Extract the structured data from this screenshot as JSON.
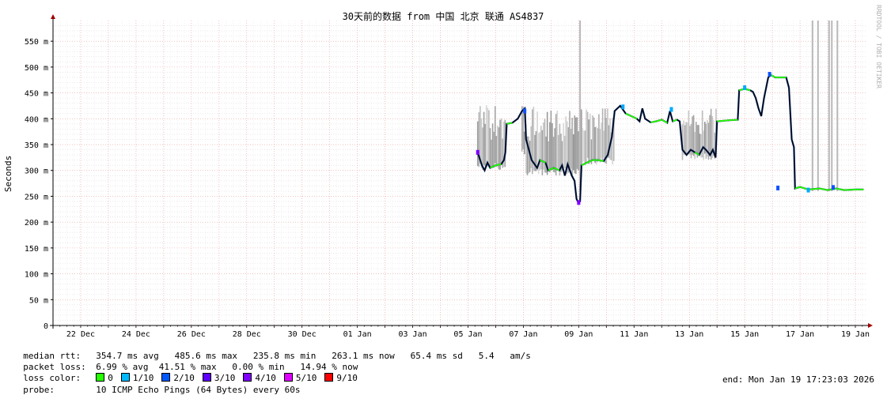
{
  "watermark": "RRDTOOL / TOBI OETIKER",
  "chart_data": {
    "type": "line",
    "title": "30天前的数据 from  中国 北京 联通 AS4837",
    "ylabel": "Seconds",
    "ylim": [
      0,
      590
    ],
    "yticks": [
      {
        "v": 0,
        "label": "0"
      },
      {
        "v": 50,
        "label": "50 m"
      },
      {
        "v": 100,
        "label": "100 m"
      },
      {
        "v": 150,
        "label": "150 m"
      },
      {
        "v": 200,
        "label": "200 m"
      },
      {
        "v": 250,
        "label": "250 m"
      },
      {
        "v": 300,
        "label": "300 m"
      },
      {
        "v": 350,
        "label": "350 m"
      },
      {
        "v": 400,
        "label": "400 m"
      },
      {
        "v": 450,
        "label": "450 m"
      },
      {
        "v": 500,
        "label": "500 m"
      },
      {
        "v": 550,
        "label": "550 m"
      }
    ],
    "xlim": [
      0,
      29.4
    ],
    "xticks": [
      {
        "v": 1,
        "label": "22 Dec"
      },
      {
        "v": 3,
        "label": "24 Dec"
      },
      {
        "v": 5,
        "label": "26 Dec"
      },
      {
        "v": 7,
        "label": "28 Dec"
      },
      {
        "v": 9,
        "label": "30 Dec"
      },
      {
        "v": 11,
        "label": "01 Jan"
      },
      {
        "v": 13,
        "label": "03 Jan"
      },
      {
        "v": 15,
        "label": "05 Jan"
      },
      {
        "v": 17,
        "label": "07 Jan"
      },
      {
        "v": 19,
        "label": "09 Jan"
      },
      {
        "v": 21,
        "label": "11 Jan"
      },
      {
        "v": 23,
        "label": "13 Jan"
      },
      {
        "v": 25,
        "label": "15 Jan"
      },
      {
        "v": 27,
        "label": "17 Jan"
      },
      {
        "v": 29,
        "label": "19 Jan"
      }
    ],
    "median_series": [
      [
        15.35,
        335
      ],
      [
        15.5,
        310
      ],
      [
        15.6,
        300
      ],
      [
        15.7,
        315
      ],
      [
        15.8,
        305
      ],
      [
        16.0,
        310
      ],
      [
        16.2,
        312
      ],
      [
        16.3,
        320
      ],
      [
        16.35,
        335
      ],
      [
        16.4,
        390
      ],
      [
        16.6,
        392
      ],
      [
        16.8,
        400
      ],
      [
        16.95,
        415
      ],
      [
        17.05,
        420
      ],
      [
        17.1,
        360
      ],
      [
        17.3,
        320
      ],
      [
        17.5,
        305
      ],
      [
        17.6,
        320
      ],
      [
        17.8,
        315
      ],
      [
        17.9,
        300
      ],
      [
        18.1,
        305
      ],
      [
        18.3,
        300
      ],
      [
        18.4,
        310
      ],
      [
        18.5,
        290
      ],
      [
        18.6,
        312
      ],
      [
        18.75,
        290
      ],
      [
        18.85,
        280
      ],
      [
        18.92,
        245
      ],
      [
        18.98,
        238
      ],
      [
        19.05,
        240
      ],
      [
        19.1,
        310
      ],
      [
        19.3,
        315
      ],
      [
        19.5,
        320
      ],
      [
        19.7,
        320
      ],
      [
        19.9,
        318
      ],
      [
        20.05,
        330
      ],
      [
        20.2,
        365
      ],
      [
        20.3,
        415
      ],
      [
        20.5,
        425
      ],
      [
        20.7,
        410
      ],
      [
        20.9,
        405
      ],
      [
        21.1,
        400
      ],
      [
        21.2,
        395
      ],
      [
        21.3,
        420
      ],
      [
        21.4,
        400
      ],
      [
        21.6,
        393
      ],
      [
        21.8,
        395
      ],
      [
        22.0,
        398
      ],
      [
        22.2,
        392
      ],
      [
        22.3,
        415
      ],
      [
        22.4,
        395
      ],
      [
        22.55,
        398
      ],
      [
        22.65,
        395
      ],
      [
        22.75,
        340
      ],
      [
        22.9,
        330
      ],
      [
        23.05,
        340
      ],
      [
        23.2,
        335
      ],
      [
        23.35,
        330
      ],
      [
        23.5,
        345
      ],
      [
        23.6,
        340
      ],
      [
        23.75,
        330
      ],
      [
        23.85,
        340
      ],
      [
        23.95,
        325
      ],
      [
        24.0,
        395
      ],
      [
        24.4,
        397
      ],
      [
        24.75,
        398
      ],
      [
        24.8,
        455
      ],
      [
        25.0,
        458
      ],
      [
        25.2,
        455
      ],
      [
        25.3,
        452
      ],
      [
        25.4,
        440
      ],
      [
        25.5,
        420
      ],
      [
        25.6,
        405
      ],
      [
        25.7,
        440
      ],
      [
        25.85,
        480
      ],
      [
        25.95,
        485
      ],
      [
        26.1,
        480
      ],
      [
        26.5,
        480
      ],
      [
        26.6,
        460
      ],
      [
        26.7,
        360
      ],
      [
        26.78,
        345
      ],
      [
        26.82,
        265
      ],
      [
        27.0,
        268
      ],
      [
        27.3,
        263
      ],
      [
        27.7,
        265
      ],
      [
        28.0,
        262
      ],
      [
        28.3,
        265
      ],
      [
        28.6,
        262
      ],
      [
        29.0,
        263
      ],
      [
        29.3,
        263
      ]
    ],
    "smoke_spans": [
      [
        15.35,
        16.35,
        300,
        430
      ],
      [
        16.95,
        17.1,
        330,
        425
      ],
      [
        17.1,
        19.1,
        290,
        430
      ],
      [
        19.1,
        20.3,
        310,
        420
      ],
      [
        22.75,
        24.0,
        320,
        420
      ]
    ],
    "loss_spikes": [
      19.05,
      27.45,
      27.65,
      28.05,
      28.15,
      28.35
    ],
    "loss_marks": [
      {
        "x": 15.35,
        "y": 335,
        "color": "#7e00ff"
      },
      {
        "x": 19.0,
        "y": 238,
        "color": "#7e00ff"
      },
      {
        "x": 17.05,
        "y": 415,
        "color": "#0f52ff"
      },
      {
        "x": 22.35,
        "y": 418,
        "color": "#00aaff"
      },
      {
        "x": 25.0,
        "y": 460,
        "color": "#00aaff"
      },
      {
        "x": 25.9,
        "y": 486,
        "color": "#0f52ff"
      },
      {
        "x": 26.2,
        "y": 266,
        "color": "#0f52ff"
      },
      {
        "x": 27.3,
        "y": 262,
        "color": "#00aaff"
      },
      {
        "x": 28.2,
        "y": 267,
        "color": "#0f52ff"
      },
      {
        "x": 20.6,
        "y": 423,
        "color": "#00aaff"
      }
    ]
  },
  "stats": {
    "median_label": "median rtt:",
    "median_value": "354.7 ms avg   485.6 ms max   235.8 ms min   263.1 ms now   65.4 ms sd   5.4   am/s",
    "loss_label": "packet loss:",
    "loss_value": "6.99 % avg  41.51 % max   0.00 % min   14.94 % now",
    "color_label": "loss color:",
    "loss_colors": [
      {
        "label": "0",
        "color": "#26ff00"
      },
      {
        "label": "1/10",
        "color": "#00b8ff"
      },
      {
        "label": "2/10",
        "color": "#0059ff"
      },
      {
        "label": "3/10",
        "color": "#5e00ff"
      },
      {
        "label": "4/10",
        "color": "#7e00ff"
      },
      {
        "label": "5/10",
        "color": "#dd00ff"
      },
      {
        "label": "9/10",
        "color": "#ff0000"
      }
    ],
    "probe_label": "probe:",
    "probe_value": "10 ICMP Echo Pings (64 Bytes) every 60s",
    "end_text": "end: Mon Jan 19 17:23:03 2026"
  }
}
